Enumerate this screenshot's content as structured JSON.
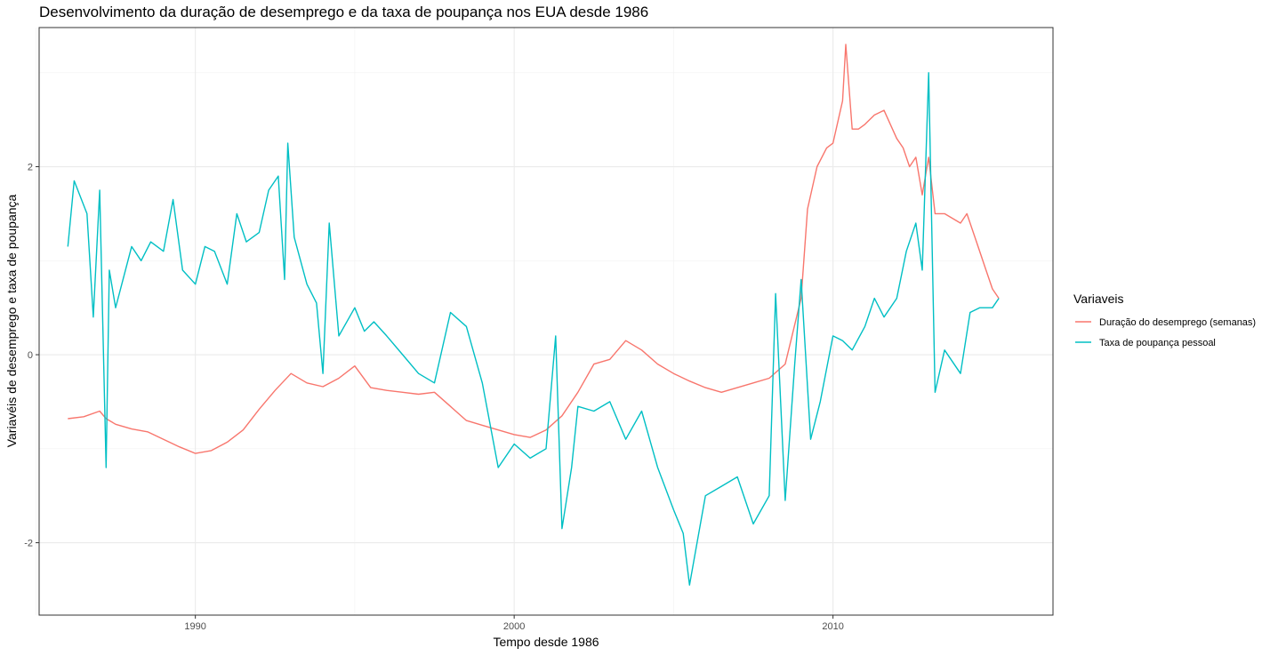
{
  "chart_data": {
    "type": "line",
    "title": "Desenvolvimento da duração de desemprego e da taxa de poupança nos EUA desde 1986",
    "xlabel": "Tempo desde 1986",
    "ylabel": "Variavéis de desemprego e taxa de poupança",
    "xlim": [
      1985.1,
      2016.9
    ],
    "ylim": [
      -2.77,
      3.48
    ],
    "x_ticks": [
      1990,
      2000,
      2010
    ],
    "x_tick_labels": [
      "1990",
      "2000",
      "2010"
    ],
    "y_ticks": [
      -2,
      0,
      2
    ],
    "y_tick_labels": [
      "-2",
      "0",
      "2"
    ],
    "grid": true,
    "legend": {
      "title": "Variaveis",
      "position": "right"
    },
    "series": [
      {
        "name": "Duração do desemprego (semanas)",
        "color": "#F8766D",
        "x": [
          1986.0,
          1986.5,
          1987.0,
          1987.2,
          1987.5,
          1988.0,
          1988.5,
          1989.0,
          1989.5,
          1990.0,
          1990.5,
          1991.0,
          1991.5,
          1992.0,
          1992.5,
          1993.0,
          1993.5,
          1994.0,
          1994.5,
          1995.0,
          1995.5,
          1996.0,
          1996.5,
          1997.0,
          1997.5,
          1998.0,
          1998.5,
          1999.0,
          1999.5,
          2000.0,
          2000.5,
          2001.0,
          2001.5,
          2002.0,
          2002.5,
          2003.0,
          2003.5,
          2004.0,
          2004.5,
          2005.0,
          2005.5,
          2006.0,
          2006.5,
          2007.0,
          2007.5,
          2008.0,
          2008.5,
          2009.0,
          2009.2,
          2009.5,
          2009.8,
          2010.0,
          2010.3,
          2010.4,
          2010.6,
          2010.8,
          2011.0,
          2011.3,
          2011.6,
          2012.0,
          2012.2,
          2012.4,
          2012.6,
          2012.8,
          2013.0,
          2013.2,
          2013.5,
          2014.0,
          2014.2,
          2014.5,
          2014.8,
          2015.0,
          2015.2
        ],
        "values": [
          -0.68,
          -0.66,
          -0.6,
          -0.68,
          -0.74,
          -0.79,
          -0.82,
          -0.9,
          -0.98,
          -1.05,
          -1.02,
          -0.93,
          -0.8,
          -0.58,
          -0.38,
          -0.2,
          -0.3,
          -0.34,
          -0.25,
          -0.12,
          -0.35,
          -0.38,
          -0.4,
          -0.42,
          -0.4,
          -0.55,
          -0.7,
          -0.75,
          -0.8,
          -0.85,
          -0.88,
          -0.8,
          -0.65,
          -0.4,
          -0.1,
          -0.05,
          0.15,
          0.05,
          -0.1,
          -0.2,
          -0.28,
          -0.35,
          -0.4,
          -0.35,
          -0.3,
          -0.25,
          -0.1,
          0.6,
          1.55,
          2.0,
          2.2,
          2.25,
          2.7,
          3.3,
          2.4,
          2.4,
          2.45,
          2.55,
          2.6,
          2.3,
          2.2,
          2.0,
          2.1,
          1.7,
          2.1,
          1.5,
          1.5,
          1.4,
          1.5,
          1.2,
          0.9,
          0.7,
          0.6
        ]
      },
      {
        "name": "Taxa de poupança pessoal",
        "color": "#00BFC4",
        "x": [
          1986.0,
          1986.2,
          1986.6,
          1986.8,
          1987.0,
          1987.2,
          1987.3,
          1987.5,
          1988.0,
          1988.3,
          1988.6,
          1989.0,
          1989.3,
          1989.6,
          1990.0,
          1990.3,
          1990.6,
          1991.0,
          1991.3,
          1991.6,
          1992.0,
          1992.3,
          1992.6,
          1992.8,
          1992.9,
          1993.1,
          1993.5,
          1993.8,
          1994.0,
          1994.2,
          1994.5,
          1995.0,
          1995.3,
          1995.6,
          1996.0,
          1996.5,
          1997.0,
          1997.5,
          1998.0,
          1998.5,
          1999.0,
          1999.5,
          2000.0,
          2000.5,
          2001.0,
          2001.3,
          2001.5,
          2001.8,
          2002.0,
          2002.5,
          2003.0,
          2003.5,
          2004.0,
          2004.5,
          2005.0,
          2005.3,
          2005.5,
          2006.0,
          2006.5,
          2007.0,
          2007.5,
          2008.0,
          2008.2,
          2008.5,
          2008.8,
          2009.0,
          2009.3,
          2009.6,
          2010.0,
          2010.3,
          2010.6,
          2011.0,
          2011.3,
          2011.6,
          2012.0,
          2012.3,
          2012.6,
          2012.8,
          2013.0,
          2013.2,
          2013.5,
          2014.0,
          2014.3,
          2014.6,
          2015.0,
          2015.2
        ],
        "values": [
          1.15,
          1.85,
          1.5,
          0.4,
          1.75,
          -1.2,
          0.9,
          0.5,
          1.15,
          1.0,
          1.2,
          1.1,
          1.65,
          0.9,
          0.75,
          1.15,
          1.1,
          0.75,
          1.5,
          1.2,
          1.3,
          1.75,
          1.9,
          0.8,
          2.25,
          1.25,
          0.75,
          0.55,
          -0.2,
          1.4,
          0.2,
          0.5,
          0.25,
          0.35,
          0.2,
          0.0,
          -0.2,
          -0.3,
          0.45,
          0.3,
          -0.3,
          -1.2,
          -0.95,
          -1.1,
          -1.0,
          0.2,
          -1.85,
          -1.2,
          -0.55,
          -0.6,
          -0.5,
          -0.9,
          -0.6,
          -1.2,
          -1.65,
          -1.9,
          -2.45,
          -1.5,
          -1.4,
          -1.3,
          -1.8,
          -1.5,
          0.65,
          -1.55,
          -0.1,
          0.8,
          -0.9,
          -0.5,
          0.2,
          0.15,
          0.05,
          0.3,
          0.6,
          0.4,
          0.6,
          1.1,
          1.4,
          0.9,
          3.0,
          -0.4,
          0.05,
          -0.2,
          0.45,
          0.5,
          0.5,
          0.6
        ]
      }
    ]
  }
}
